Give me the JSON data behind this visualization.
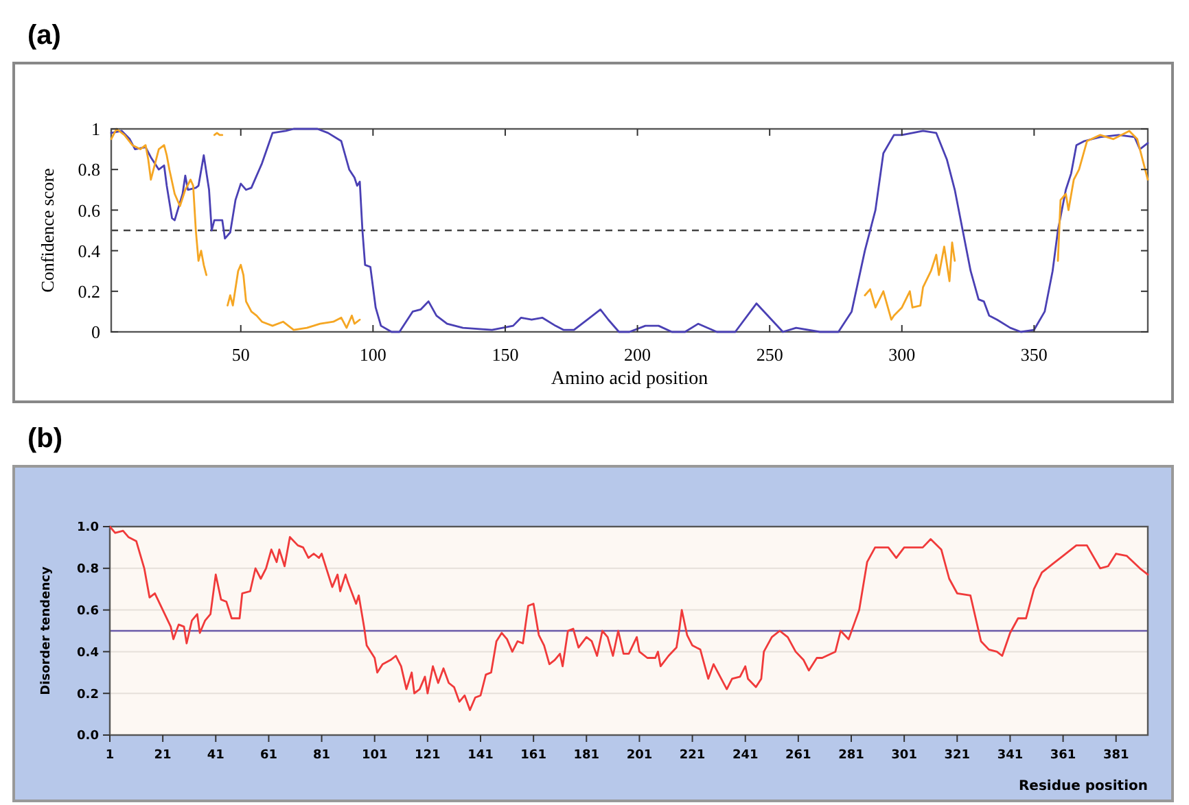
{
  "chart_data": [
    {
      "type": "line",
      "title": "(a)",
      "xlabel": "Amino acid position",
      "ylabel": "Confidence score",
      "xlim": [
        1,
        393
      ],
      "ylim": [
        0,
        1
      ],
      "xticks": [
        50,
        100,
        150,
        200,
        250,
        300,
        350
      ],
      "yticks": [
        0,
        0.2,
        0.4,
        0.6,
        0.8,
        1
      ],
      "grid": false,
      "ref_lines": [
        {
          "axis": "y",
          "value": 0.5,
          "color": "#444444",
          "line_style": "dashed"
        }
      ],
      "series": [
        {
          "color": "#4a40b4",
          "x": [
            1,
            5,
            8,
            10,
            14,
            16,
            19,
            21,
            22,
            24,
            25,
            28,
            29,
            30,
            33,
            34,
            36,
            38,
            39,
            40,
            43,
            44,
            46,
            48,
            50,
            52,
            54,
            57,
            58,
            62,
            67,
            70,
            79,
            83,
            88,
            91,
            93,
            94,
            95,
            96,
            97,
            99,
            101,
            103,
            107,
            110,
            115,
            118,
            121,
            124,
            128,
            134,
            145,
            153,
            156,
            160,
            164,
            169,
            172,
            176,
            183,
            186,
            189,
            193,
            197,
            203,
            208,
            213,
            218,
            223,
            230,
            237,
            245,
            250,
            255,
            260,
            269,
            276,
            281,
            286,
            290,
            293,
            297,
            300,
            308,
            313,
            317,
            320,
            323,
            326,
            329,
            331,
            333,
            336,
            341,
            345,
            350,
            354,
            357,
            359,
            362,
            364,
            366,
            369,
            375,
            382,
            388,
            390,
            393
          ],
          "values": [
            0.98,
            0.99,
            0.95,
            0.9,
            0.91,
            0.86,
            0.8,
            0.82,
            0.72,
            0.56,
            0.55,
            0.68,
            0.77,
            0.7,
            0.71,
            0.72,
            0.87,
            0.7,
            0.5,
            0.55,
            0.55,
            0.46,
            0.49,
            0.65,
            0.73,
            0.7,
            0.71,
            0.8,
            0.83,
            0.98,
            0.99,
            1,
            1,
            0.98,
            0.94,
            0.8,
            0.76,
            0.72,
            0.74,
            0.5,
            0.33,
            0.32,
            0.12,
            0.03,
            0,
            0,
            0.1,
            0.11,
            0.15,
            0.08,
            0.04,
            0.02,
            0.01,
            0.03,
            0.07,
            0.06,
            0.07,
            0.03,
            0.01,
            0.01,
            0.08,
            0.11,
            0.06,
            0,
            0,
            0.03,
            0.03,
            0,
            0,
            0.04,
            0,
            0,
            0.14,
            0.07,
            0,
            0.02,
            0,
            0,
            0.1,
            0.4,
            0.6,
            0.88,
            0.97,
            0.97,
            0.99,
            0.98,
            0.85,
            0.7,
            0.5,
            0.3,
            0.16,
            0.15,
            0.08,
            0.06,
            0.02,
            0,
            0.01,
            0.1,
            0.3,
            0.5,
            0.7,
            0.78,
            0.92,
            0.94,
            0.96,
            0.97,
            0.96,
            0.9,
            0.93
          ]
        },
        {
          "color": "#f5a623",
          "x": [
            1,
            3,
            6,
            9,
            12,
            14,
            15,
            16,
            17,
            19,
            21,
            22,
            23,
            25,
            27,
            29,
            31,
            32,
            33,
            34,
            35,
            36,
            37,
            38,
            45,
            46,
            47,
            49,
            50,
            51,
            52,
            54,
            56,
            58,
            62,
            66,
            70,
            75,
            80,
            85,
            88,
            90,
            92,
            93,
            95,
            200,
            286,
            288,
            290,
            293,
            296,
            297,
            300,
            303,
            304,
            307,
            308,
            311,
            313,
            314,
            316,
            318,
            319,
            320,
            340,
            359,
            360,
            362,
            363,
            365,
            367,
            370,
            375,
            380,
            386,
            389,
            393
          ],
          "values": [
            0.95,
            1,
            0.97,
            0.92,
            0.9,
            0.92,
            0.85,
            0.75,
            0.8,
            0.9,
            0.92,
            0.87,
            0.8,
            0.68,
            0.62,
            0.7,
            0.75,
            0.72,
            0.5,
            0.35,
            0.4,
            0.33,
            0.28,
            null,
            0.13,
            0.18,
            0.13,
            0.3,
            0.33,
            0.28,
            0.15,
            0.1,
            0.08,
            0.05,
            0.03,
            0.05,
            0.01,
            0.02,
            0.04,
            0.05,
            0.07,
            0.02,
            0.08,
            0.04,
            0.06,
            null,
            0.18,
            0.21,
            0.12,
            0.2,
            0.06,
            0.08,
            0.12,
            0.2,
            0.12,
            0.13,
            0.22,
            0.3,
            0.38,
            0.28,
            0.42,
            0.25,
            0.44,
            0.35,
            null,
            0.35,
            0.65,
            0.68,
            0.6,
            0.75,
            0.8,
            0.94,
            0.97,
            0.95,
            0.99,
            0.95,
            0.75
          ]
        },
        {
          "color": "#f5a623",
          "x": [
            40,
            41,
            42,
            43
          ],
          "values": [
            0.97,
            0.98,
            0.97,
            0.97
          ]
        }
      ]
    },
    {
      "type": "line",
      "title": "(b)",
      "xlabel": "Residue position",
      "ylabel": "Disorder tendency",
      "xlim": [
        1,
        393
      ],
      "ylim": [
        0,
        1
      ],
      "xticks": [
        1,
        21,
        41,
        61,
        81,
        101,
        121,
        141,
        161,
        181,
        201,
        221,
        241,
        261,
        281,
        301,
        321,
        341,
        361,
        381
      ],
      "yticks": [
        {
          "value": 0,
          "label": "0.0"
        },
        {
          "value": 0.2,
          "label": "0.2"
        },
        {
          "value": 0.4,
          "label": "0.4"
        },
        {
          "value": 0.6,
          "label": "0.6"
        },
        {
          "value": 0.8,
          "label": "0.8"
        },
        {
          "value": 1,
          "label": "1.0"
        }
      ],
      "grid": "y",
      "ref_lines": [
        {
          "axis": "y",
          "value": 0.5,
          "color": "#6a5aa8",
          "line_style": "solid"
        }
      ],
      "series": [
        {
          "color": "#f03a3a",
          "x": [
            1,
            3,
            6,
            8,
            11,
            14,
            16,
            18,
            21,
            24,
            25,
            27,
            29,
            30,
            32,
            34,
            35,
            37,
            39,
            41,
            43,
            45,
            47,
            50,
            51,
            54,
            56,
            58,
            60,
            62,
            64,
            65,
            67,
            69,
            72,
            74,
            76,
            78,
            80,
            81,
            83,
            85,
            87,
            88,
            90,
            91,
            94,
            95,
            97,
            98,
            101,
            102,
            104,
            107,
            109,
            111,
            113,
            115,
            116,
            118,
            120,
            121,
            123,
            125,
            127,
            129,
            131,
            133,
            135,
            137,
            139,
            141,
            143,
            145,
            147,
            149,
            151,
            153,
            155,
            157,
            159,
            161,
            163,
            165,
            167,
            169,
            171,
            172,
            174,
            176,
            178,
            181,
            183,
            185,
            187,
            189,
            191,
            193,
            195,
            197,
            200,
            201,
            204,
            207,
            208,
            209,
            212,
            215,
            216,
            217,
            219,
            221,
            224,
            227,
            229,
            234,
            236,
            239,
            241,
            242,
            245,
            247,
            248,
            251,
            254,
            256,
            257,
            260,
            263,
            265,
            268,
            270,
            275,
            277,
            280,
            282,
            284,
            287,
            290,
            295,
            298,
            301,
            308,
            311,
            315,
            318,
            321,
            326,
            330,
            333,
            336,
            338,
            341,
            344,
            347,
            350,
            353,
            357,
            361,
            366,
            370,
            375,
            378,
            381,
            385,
            390,
            393
          ],
          "values": [
            1,
            0.97,
            0.98,
            0.95,
            0.93,
            0.8,
            0.66,
            0.68,
            0.6,
            0.52,
            0.46,
            0.53,
            0.52,
            0.44,
            0.55,
            0.58,
            0.49,
            0.55,
            0.58,
            0.77,
            0.65,
            0.64,
            0.56,
            0.56,
            0.68,
            0.69,
            0.8,
            0.75,
            0.8,
            0.89,
            0.83,
            0.89,
            0.81,
            0.95,
            0.91,
            0.9,
            0.85,
            0.87,
            0.85,
            0.87,
            0.79,
            0.71,
            0.77,
            0.69,
            0.77,
            0.73,
            0.63,
            0.67,
            0.52,
            0.43,
            0.37,
            0.3,
            0.34,
            0.36,
            0.38,
            0.33,
            0.22,
            0.3,
            0.2,
            0.22,
            0.28,
            0.2,
            0.33,
            0.25,
            0.32,
            0.25,
            0.23,
            0.16,
            0.19,
            0.12,
            0.18,
            0.19,
            0.29,
            0.3,
            0.45,
            0.49,
            0.46,
            0.4,
            0.45,
            0.44,
            0.62,
            0.63,
            0.48,
            0.43,
            0.34,
            0.36,
            0.39,
            0.33,
            0.5,
            0.51,
            0.42,
            0.47,
            0.45,
            0.38,
            0.5,
            0.47,
            0.38,
            0.5,
            0.39,
            0.39,
            0.47,
            0.4,
            0.37,
            0.37,
            0.4,
            0.33,
            0.38,
            0.42,
            0.5,
            0.6,
            0.48,
            0.43,
            0.41,
            0.27,
            0.34,
            0.22,
            0.27,
            0.28,
            0.33,
            0.27,
            0.23,
            0.27,
            0.4,
            0.47,
            0.5,
            0.48,
            0.47,
            0.4,
            0.36,
            0.31,
            0.37,
            0.37,
            0.4,
            0.5,
            0.46,
            0.53,
            0.6,
            0.83,
            0.9,
            0.9,
            0.85,
            0.9,
            0.9,
            0.94,
            0.89,
            0.75,
            0.68,
            0.67,
            0.45,
            0.41,
            0.4,
            0.38,
            0.49,
            0.56,
            0.56,
            0.7,
            0.78,
            0.82,
            0.86,
            0.91,
            0.91,
            0.8,
            0.81,
            0.87,
            0.86,
            0.8,
            0.77
          ]
        }
      ]
    }
  ]
}
